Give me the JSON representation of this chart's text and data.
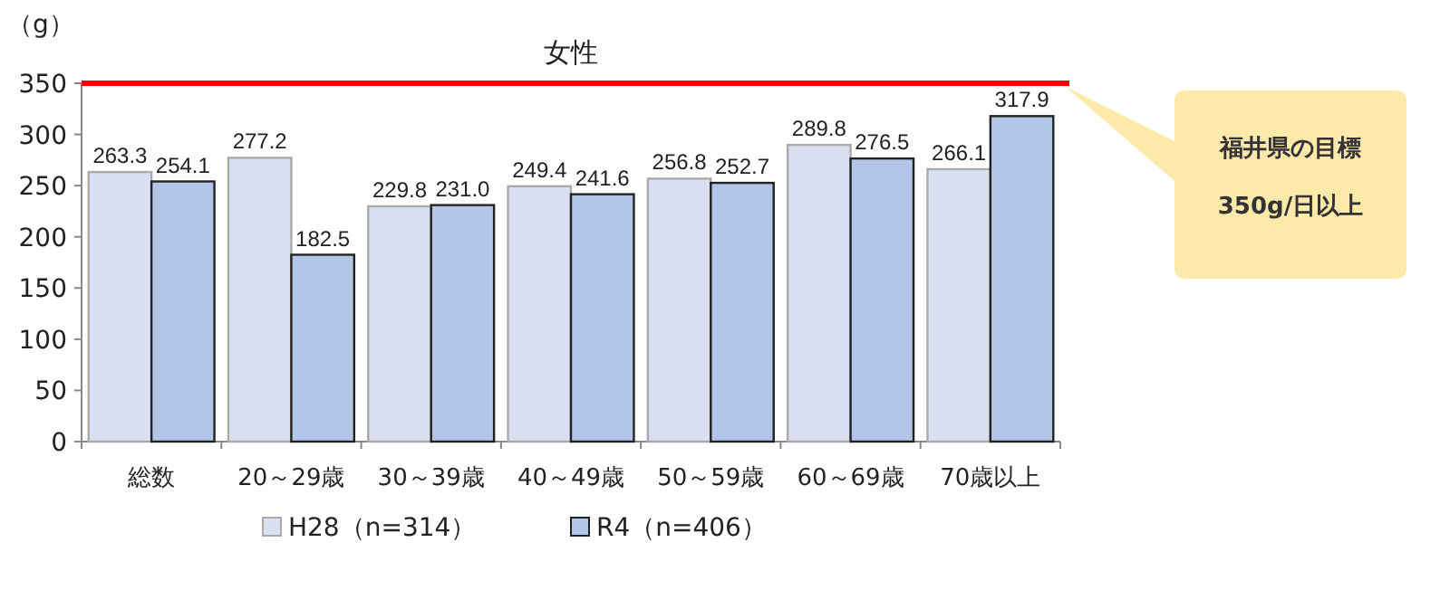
{
  "chart_data": {
    "type": "bar",
    "title": "女性",
    "ylabel": "（g）",
    "categories": [
      "総数",
      "20～29歳",
      "30～39歳",
      "40～49歳",
      "50～59歳",
      "60～69歳",
      "70歳以上"
    ],
    "series": [
      {
        "name": "H28（n=314）",
        "color": "#dae0f2",
        "values": [
          263.3,
          277.2,
          229.8,
          249.4,
          256.8,
          289.8,
          266.1
        ],
        "value_labels": [
          "263.3",
          "277.2",
          "229.8",
          "249.4",
          "256.8",
          "289.8",
          "266.1"
        ]
      },
      {
        "name": "R4（n=406）",
        "color": "#b4c6e7",
        "values": [
          254.1,
          182.5,
          231.0,
          241.6,
          252.7,
          276.5,
          317.9
        ],
        "value_labels": [
          "254.1",
          "182.5",
          "231.0",
          "241.6",
          "252.7",
          "276.5",
          "317.9"
        ]
      }
    ],
    "ylim": [
      0,
      350
    ],
    "yticks": [
      0,
      50,
      100,
      150,
      200,
      250,
      300,
      350
    ],
    "ref_lines": [
      {
        "axis": "y",
        "value": 350,
        "label": "福井県の目標\n350g/日以上",
        "color": "#ff0000"
      }
    ],
    "legend": "bottom",
    "grid": false
  }
}
